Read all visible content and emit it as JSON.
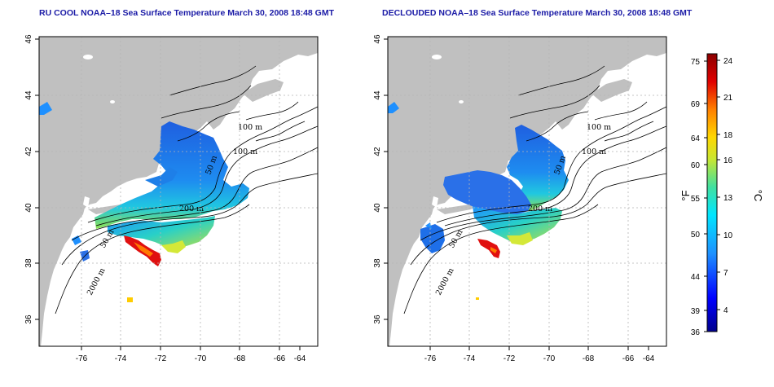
{
  "panels": [
    {
      "id": "left",
      "title": "RU COOL NOAA–18 Sea Surface Temperature March 30, 2008 18:48 GMT",
      "contour_labels": [
        "100 m",
        "100 m",
        "50 m",
        "200 m",
        "50 m",
        "2000 m"
      ]
    },
    {
      "id": "right",
      "title": "DECLOUDED NOAA–18 Sea Surface Temperature March 30, 2008 18:48 GMT",
      "contour_labels": [
        "100 m",
        "100 m",
        "50 m",
        "200 m",
        "50 m",
        "2000 m"
      ]
    }
  ],
  "axes": {
    "x_ticks": [
      "-76",
      "-74",
      "-72",
      "-70",
      "-68",
      "-66",
      "-64"
    ],
    "y_ticks": [
      "36",
      "38",
      "40",
      "42",
      "44",
      "46"
    ],
    "grid": "dotted"
  },
  "colorbar": {
    "fahrenheit_label": "°F",
    "celsius_label": "°C",
    "fahrenheit_ticks": [
      "75",
      "69",
      "64",
      "60",
      "55",
      "50",
      "44",
      "39",
      "36"
    ],
    "celsius_ticks": [
      "24",
      "21",
      "18",
      "16",
      "13",
      "10",
      "7",
      "4"
    ],
    "colors": [
      "#00008b",
      "#0000ff",
      "#1e90ff",
      "#00e5ff",
      "#40e0a0",
      "#c8e632",
      "#ffd700",
      "#ff7f00",
      "#e00000",
      "#8b0000"
    ]
  },
  "colors": {
    "land": "#c0c0c0",
    "ocean": "#ffffff",
    "contour": "#000000",
    "grid": "#b4b4b4"
  }
}
